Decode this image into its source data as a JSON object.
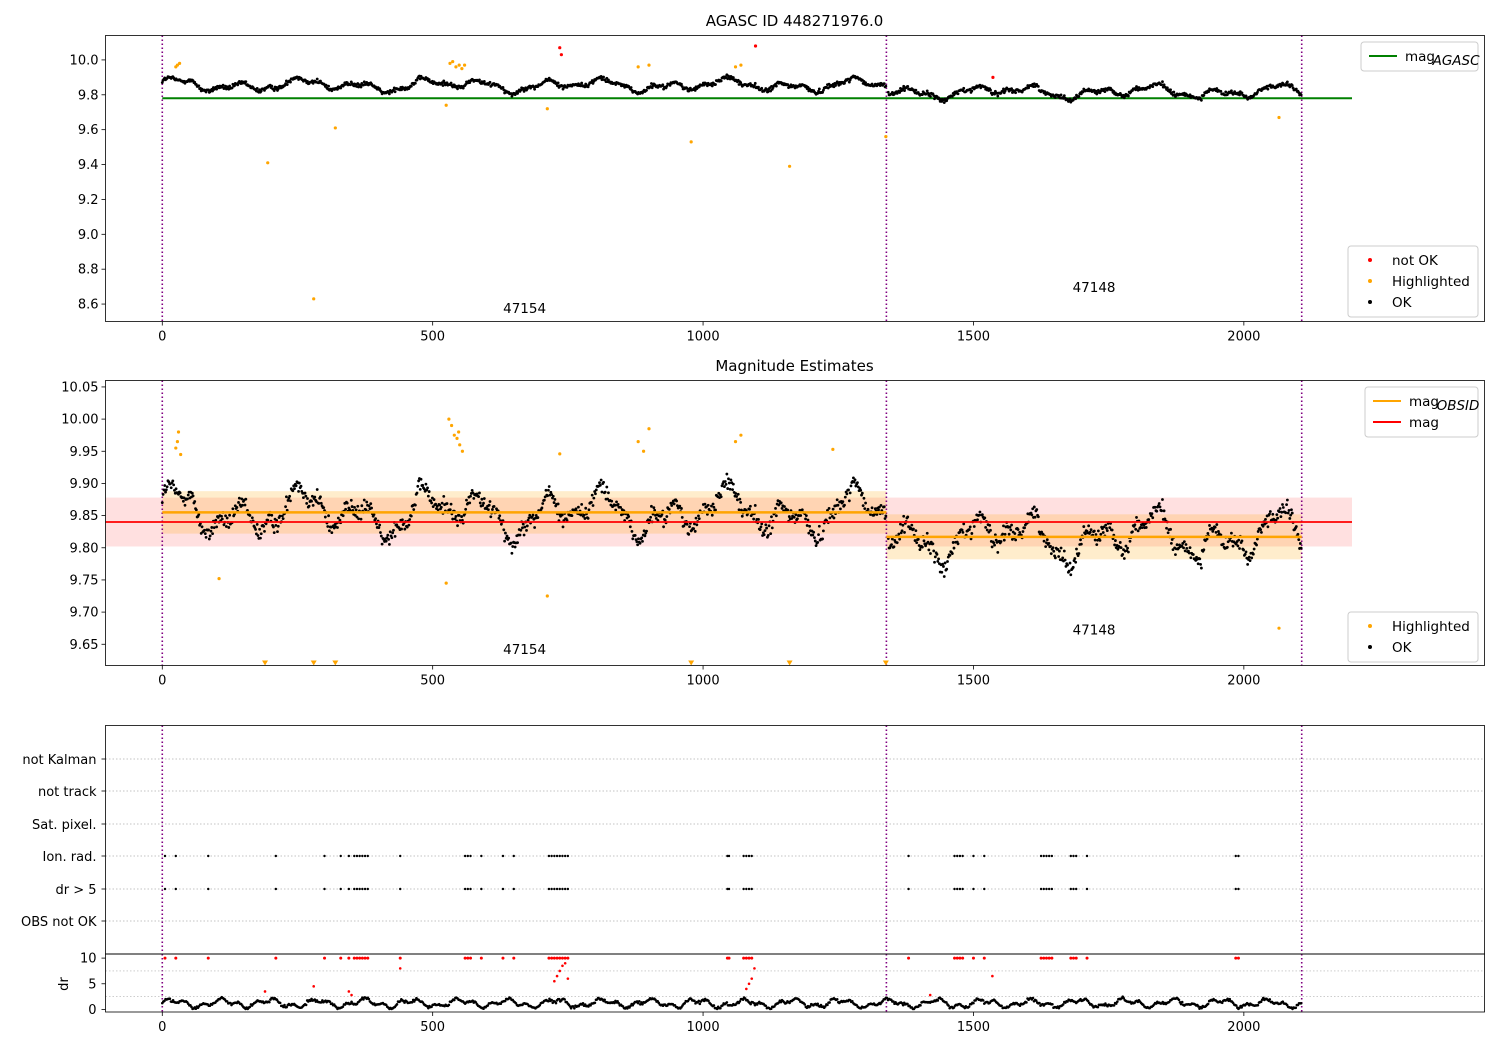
{
  "chart_data": [
    {
      "id": "agasc",
      "type": "scatter",
      "title": "AGASC ID 448271976.0",
      "xlim": [
        -105,
        2445
      ],
      "ylim": [
        8.5,
        10.14
      ],
      "xticks": [
        0,
        500,
        1000,
        1500,
        2000
      ],
      "yticks": [
        8.6,
        8.8,
        9.0,
        9.2,
        9.4,
        9.6,
        9.8,
        10.0
      ],
      "ytick_format": 1,
      "vlines": [
        0,
        1339,
        2107
      ],
      "obsid_labels": [
        {
          "x": 670,
          "y": 8.55,
          "text": "47154"
        },
        {
          "x": 1723,
          "y": 8.67,
          "text": "47148"
        }
      ],
      "hlines": [
        {
          "name": "mag_AGASC",
          "label_main": "mag",
          "label_sub": "AGASC",
          "y": 9.78,
          "x0": 0,
          "x1": 2200,
          "color": "#008000"
        }
      ],
      "legend_top": [
        {
          "label_main": "mag",
          "label_sub": "AGASC",
          "kind": "line",
          "color": "#008000"
        }
      ],
      "legend_bottom": [
        {
          "label": "not OK",
          "kind": "dot",
          "color": "#ff0000"
        },
        {
          "label": "Highlighted",
          "kind": "dot",
          "color": "#ffa500"
        },
        {
          "label": "OK",
          "kind": "dot",
          "color": "#000000"
        }
      ],
      "highlighted_points": [
        [
          25,
          9.96
        ],
        [
          28,
          9.97
        ],
        [
          32,
          9.98
        ],
        [
          195,
          9.41
        ],
        [
          280,
          8.63
        ],
        [
          320,
          9.61
        ],
        [
          525,
          9.74
        ],
        [
          532,
          9.98
        ],
        [
          537,
          9.99
        ],
        [
          543,
          9.96
        ],
        [
          549,
          9.97
        ],
        [
          554,
          9.95
        ],
        [
          559,
          9.97
        ],
        [
          712,
          9.72
        ],
        [
          880,
          9.96
        ],
        [
          900,
          9.97
        ],
        [
          978,
          9.53
        ],
        [
          1060,
          9.96
        ],
        [
          1070,
          9.97
        ],
        [
          1160,
          9.39
        ],
        [
          1338,
          9.56
        ],
        [
          2065,
          9.67
        ]
      ],
      "notok_points": [
        [
          735,
          10.07
        ],
        [
          738,
          10.03
        ],
        [
          1097,
          10.08
        ],
        [
          1536,
          9.9
        ]
      ]
    },
    {
      "id": "estimates",
      "type": "scatter",
      "title": "Magnitude Estimates",
      "xlim": [
        -105,
        2445
      ],
      "ylim": [
        9.617,
        10.06
      ],
      "xticks": [
        0,
        500,
        1000,
        1500,
        2000
      ],
      "yticks": [
        9.65,
        9.7,
        9.75,
        9.8,
        9.85,
        9.9,
        9.95,
        10.0,
        10.05
      ],
      "ytick_format": 2,
      "vlines": [
        0,
        1339,
        2107
      ],
      "obsid_labels": [
        {
          "x": 670,
          "y": 9.635,
          "text": "47154"
        },
        {
          "x": 1723,
          "y": 9.665,
          "text": "47148"
        }
      ],
      "mag_band": {
        "y": 9.84,
        "y_low": 9.802,
        "y_high": 9.878,
        "x0": -105,
        "x1": 2200,
        "color": "#ff0000"
      },
      "obsid_bands": [
        {
          "x0": 0,
          "x1": 1339,
          "y": 9.855,
          "y_low": 9.822,
          "y_high": 9.888,
          "color": "#ffa500"
        },
        {
          "x0": 1339,
          "x1": 2107,
          "y": 9.817,
          "y_low": 9.782,
          "y_high": 9.852,
          "color": "#ffa500"
        }
      ],
      "legend_top": [
        {
          "label_main": "mag",
          "label_sub": "OBSID",
          "kind": "line",
          "color": "#ffa500"
        },
        {
          "label_main": "mag",
          "label_sub": "",
          "kind": "line",
          "color": "#ff0000"
        }
      ],
      "legend_bottom": [
        {
          "label": "Highlighted",
          "kind": "dot",
          "color": "#ffa500"
        },
        {
          "label": "OK",
          "kind": "dot",
          "color": "#000000"
        }
      ],
      "highlighted_points": [
        [
          25,
          9.955
        ],
        [
          28,
          9.965
        ],
        [
          30,
          9.98
        ],
        [
          34,
          9.945
        ],
        [
          105,
          9.752
        ],
        [
          525,
          9.745
        ],
        [
          530,
          10.0
        ],
        [
          535,
          9.99
        ],
        [
          540,
          9.975
        ],
        [
          545,
          9.97
        ],
        [
          550,
          9.96
        ],
        [
          555,
          9.95
        ],
        [
          548,
          9.98
        ],
        [
          712,
          9.725
        ],
        [
          735,
          9.946
        ],
        [
          880,
          9.965
        ],
        [
          890,
          9.95
        ],
        [
          900,
          9.985
        ],
        [
          1060,
          9.965
        ],
        [
          1070,
          9.975
        ],
        [
          1240,
          9.953
        ],
        [
          2065,
          9.675
        ]
      ],
      "offscale_markers": [
        190,
        280,
        320,
        978,
        1160,
        1338
      ]
    },
    {
      "id": "flags",
      "type": "scatter",
      "title": "",
      "xlim": [
        -105,
        2445
      ],
      "xticks": [
        0,
        500,
        1000,
        1500,
        2000
      ],
      "vlines": [
        0,
        1339,
        2107
      ],
      "categories": [
        "OBS not OK",
        "dr > 5",
        "Ion. rad.",
        "Sat. pixel.",
        "not track",
        "not Kalman"
      ],
      "flag_x": [
        5,
        25,
        85,
        210,
        300,
        330,
        345,
        355,
        360,
        365,
        370,
        375,
        380,
        440,
        560,
        565,
        570,
        590,
        630,
        650,
        715,
        720,
        725,
        730,
        735,
        740,
        745,
        750,
        1045,
        1048,
        1075,
        1080,
        1085,
        1090,
        1380,
        1465,
        1470,
        1475,
        1480,
        1500,
        1520,
        1625,
        1630,
        1635,
        1640,
        1645,
        1680,
        1685,
        1690,
        1710,
        1985,
        1990
      ]
    },
    {
      "id": "dr",
      "type": "scatter",
      "title": "",
      "xlim": [
        -105,
        2445
      ],
      "ylim": [
        -0.5,
        10.8
      ],
      "xticks": [
        0,
        500,
        1000,
        1500,
        2000
      ],
      "yticks": [
        0,
        5,
        10
      ],
      "ylabel": "dr",
      "vlines": [
        0,
        1339,
        2107
      ],
      "hline": 10,
      "flag_x": [
        5,
        25,
        85,
        210,
        300,
        330,
        345,
        355,
        360,
        365,
        370,
        375,
        380,
        440,
        560,
        565,
        570,
        590,
        630,
        650,
        715,
        720,
        725,
        730,
        735,
        740,
        745,
        750,
        1045,
        1048,
        1075,
        1080,
        1085,
        1090,
        1380,
        1465,
        1470,
        1475,
        1480,
        1500,
        1520,
        1625,
        1630,
        1635,
        1640,
        1645,
        1680,
        1685,
        1690,
        1710,
        1985,
        1990
      ],
      "extra_red": [
        [
          190,
          3.5
        ],
        [
          280,
          4.5
        ],
        [
          345,
          3.5
        ],
        [
          350,
          2.8
        ],
        [
          440,
          8
        ],
        [
          725,
          5.5
        ],
        [
          730,
          6.5
        ],
        [
          735,
          7.5
        ],
        [
          740,
          8.5
        ],
        [
          745,
          9
        ],
        [
          750,
          6
        ],
        [
          1080,
          4
        ],
        [
          1085,
          5
        ],
        [
          1090,
          6
        ],
        [
          1095,
          8
        ],
        [
          1535,
          6.5
        ],
        [
          1420,
          2.8
        ]
      ]
    }
  ]
}
